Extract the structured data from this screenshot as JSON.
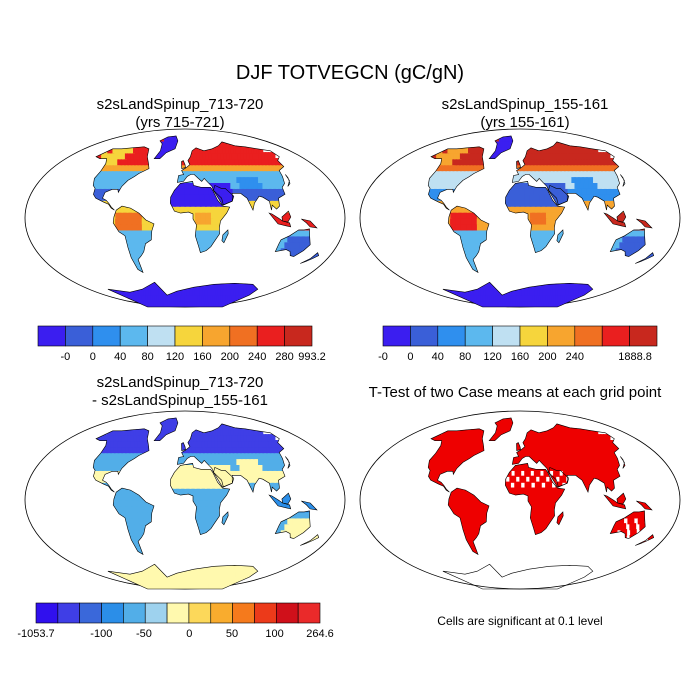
{
  "title": "DJF TOTVEGCN (gC/gN)",
  "panels": [
    {
      "line1": "s2sLandSpinup_713-720",
      "line2": "(yrs 715-721)"
    },
    {
      "line1": "s2sLandSpinup_155-161",
      "line2": "(yrs 155-161)"
    },
    {
      "line1": "s2sLandSpinup_713-720",
      "line2": "- s2sLandSpinup_155-161"
    },
    {
      "line1": "T-Test of two Case means at each grid point",
      "line2": ""
    }
  ],
  "note": "Cells are significant at 0.1 level",
  "chart_data": [
    {
      "type": "heatmap",
      "title": "s2sLandSpinup_713-720 (yrs 715-721)",
      "colorbar": {
        "ticks": [
          "-0",
          "0",
          "40",
          "80",
          "120",
          "160",
          "200",
          "240",
          "280",
          "993.2"
        ],
        "colors": [
          "#3b1ef0",
          "#3a5fd8",
          "#2f8fee",
          "#5cb8ee",
          "#bfe0f2",
          "#f6d53c",
          "#f7a52f",
          "#f07022",
          "#ea1f1f",
          "#c8281e"
        ]
      }
    },
    {
      "type": "heatmap",
      "title": "s2sLandSpinup_155-161 (yrs 155-161)",
      "colorbar": {
        "ticks": [
          "-0",
          "0",
          "40",
          "80",
          "120",
          "160",
          "200",
          "240",
          "1888.8"
        ],
        "colors": [
          "#3b1ef0",
          "#3a5fd8",
          "#2f8fee",
          "#5cb8ee",
          "#bfe0f2",
          "#f6d53c",
          "#f7a52f",
          "#f07022",
          "#ea1f1f",
          "#c8281e"
        ]
      }
    },
    {
      "type": "heatmap",
      "title": "s2sLandSpinup_713-720 - s2sLandSpinup_155-161",
      "colorbar": {
        "ticks": [
          "-1053.7",
          "-100",
          "-50",
          "0",
          "50",
          "100",
          "264.6"
        ],
        "colors": [
          "#3010ee",
          "#3f3ee6",
          "#3a68da",
          "#2b8ee8",
          "#52aee8",
          "#9ed2ee",
          "#fff9ae",
          "#fcd85a",
          "#f9ac2e",
          "#f57a1c",
          "#ec3a1a",
          "#d0101a",
          "#ea2a2a"
        ]
      }
    },
    {
      "type": "heatmap",
      "title": "T-Test of two Case means at each grid point",
      "significance_color": "#ee0000"
    }
  ]
}
